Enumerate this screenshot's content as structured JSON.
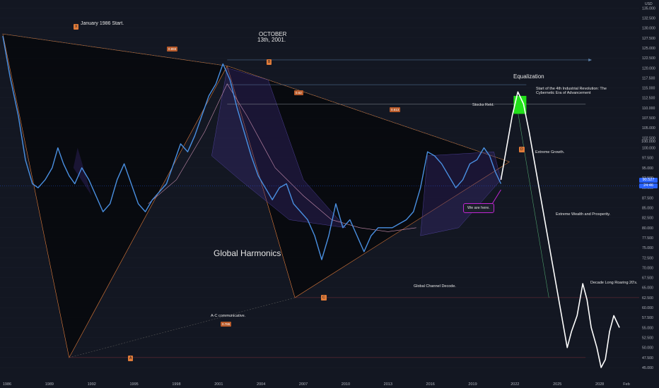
{
  "chart_data": {
    "type": "line",
    "currency": "USD",
    "x_ticks": [
      "1986",
      "1989",
      "1992",
      "1995",
      "1998",
      "2001",
      "2004",
      "2007",
      "2010",
      "2013",
      "2016",
      "2019",
      "2022",
      "2025",
      "2028",
      "Feb"
    ],
    "y_ticks": [
      45,
      47.5,
      50,
      52.5,
      55,
      57.5,
      60,
      62.5,
      65,
      67.5,
      70,
      72.5,
      75,
      77.5,
      80,
      82.5,
      85,
      87.5,
      90,
      92.5,
      95,
      97.5,
      100,
      102.5,
      105,
      107.5,
      110,
      112.5,
      115,
      117.5,
      120,
      122.5,
      125,
      127.5,
      130,
      132.5,
      135
    ],
    "ylim": [
      42,
      137
    ],
    "xlim": [
      1985.5,
      2030.8
    ],
    "price_labels": {
      "last": "90.527",
      "countdown": "24:46",
      "level": "100.000"
    },
    "historical_series": {
      "name": "",
      "color": "#4a90e2",
      "points": [
        [
          1985.7,
          128
        ],
        [
          1986.2,
          118
        ],
        [
          1986.8,
          108
        ],
        [
          1987.3,
          97
        ],
        [
          1987.8,
          91
        ],
        [
          1988.2,
          90
        ],
        [
          1988.7,
          92
        ],
        [
          1989.2,
          95
        ],
        [
          1989.6,
          100
        ],
        [
          1990.0,
          96
        ],
        [
          1990.4,
          93
        ],
        [
          1990.8,
          91
        ],
        [
          1991.3,
          95
        ],
        [
          1991.8,
          92
        ],
        [
          1992.3,
          88
        ],
        [
          1992.8,
          84
        ],
        [
          1993.3,
          86
        ],
        [
          1993.8,
          92
        ],
        [
          1994.3,
          96
        ],
        [
          1994.8,
          91
        ],
        [
          1995.3,
          86
        ],
        [
          1995.8,
          84
        ],
        [
          1996.3,
          87
        ],
        [
          1996.8,
          89
        ],
        [
          1997.3,
          91
        ],
        [
          1997.8,
          96
        ],
        [
          1998.3,
          101
        ],
        [
          1998.8,
          99
        ],
        [
          1999.3,
          103
        ],
        [
          1999.8,
          108
        ],
        [
          2000.3,
          113
        ],
        [
          2000.8,
          116
        ],
        [
          2001.3,
          121
        ],
        [
          2001.8,
          117
        ],
        [
          2002.3,
          110
        ],
        [
          2002.8,
          104
        ],
        [
          2003.3,
          98
        ],
        [
          2003.8,
          93
        ],
        [
          2004.3,
          90
        ],
        [
          2004.8,
          87
        ],
        [
          2005.3,
          90
        ],
        [
          2005.8,
          91
        ],
        [
          2006.3,
          86
        ],
        [
          2006.8,
          84
        ],
        [
          2007.3,
          82
        ],
        [
          2007.8,
          78
        ],
        [
          2008.3,
          72
        ],
        [
          2008.8,
          78
        ],
        [
          2009.3,
          86
        ],
        [
          2009.8,
          80
        ],
        [
          2010.3,
          82
        ],
        [
          2010.8,
          78
        ],
        [
          2011.3,
          74
        ],
        [
          2011.8,
          78
        ],
        [
          2012.3,
          80
        ],
        [
          2012.8,
          80
        ],
        [
          2013.3,
          80
        ],
        [
          2013.8,
          81
        ],
        [
          2014.3,
          82
        ],
        [
          2014.8,
          84
        ],
        [
          2015.3,
          90
        ],
        [
          2015.8,
          99
        ],
        [
          2016.3,
          98
        ],
        [
          2016.8,
          96
        ],
        [
          2017.3,
          93
        ],
        [
          2017.8,
          90
        ],
        [
          2018.3,
          92
        ],
        [
          2018.8,
          96
        ],
        [
          2019.3,
          97
        ],
        [
          2019.8,
          100
        ],
        [
          2020.2,
          98
        ],
        [
          2020.6,
          94
        ],
        [
          2021.0,
          91
        ]
      ]
    },
    "projection_series": {
      "name": "",
      "color": "#ffffff",
      "points": [
        [
          2021.0,
          92
        ],
        [
          2021.4,
          100
        ],
        [
          2021.8,
          108
        ],
        [
          2022.2,
          114
        ],
        [
          2022.6,
          111
        ],
        [
          2023.0,
          104
        ],
        [
          2023.4,
          96
        ],
        [
          2023.8,
          88
        ],
        [
          2024.2,
          80
        ],
        [
          2024.6,
          72
        ],
        [
          2025.0,
          64
        ],
        [
          2025.4,
          56
        ],
        [
          2025.7,
          50
        ],
        [
          2026.0,
          54
        ],
        [
          2026.4,
          58
        ],
        [
          2026.8,
          66
        ],
        [
          2027.1,
          62
        ],
        [
          2027.4,
          55
        ],
        [
          2027.8,
          50
        ],
        [
          2028.1,
          45
        ],
        [
          2028.4,
          47
        ],
        [
          2028.7,
          54
        ],
        [
          2029.0,
          58
        ],
        [
          2029.4,
          55
        ]
      ]
    }
  },
  "currency_label": "USD",
  "annotations": {
    "january_start": "January 1986 Start.",
    "october_line1": "OCTOBER",
    "october_line2": "13th, 2001.",
    "equalization": "Equalization",
    "fourth_ind_line1": "Start of the 4th Industrial Revolution: The",
    "fourth_ind_line2": "Cybernetic Era of Advancement",
    "stocks_rekt": "Stocks Rekt.",
    "extreme_growth": "Extreme Growth.",
    "extreme_wealth": "Extreme Wealth and Prosperity.",
    "global_harmonics": "Global Harmonics",
    "global_channel": "Global Channel Decode.",
    "decade_roaring": "Decade Long Roaring 20's.",
    "ac_comm": "A-C communicative.",
    "we_are_here": "We are here."
  },
  "pattern_points": {
    "X": "X",
    "A": "A",
    "B": "B",
    "C": "C",
    "D": "D"
  },
  "ratios": {
    "xb": "0.893",
    "ac": "0.786",
    "bc1": "0.62",
    "bc2": "0.613"
  },
  "colors": {
    "accent_orange": "#e07b39",
    "blue_line": "#4a90e2",
    "green_box": "#22e01a",
    "purple": "#c026d3"
  }
}
